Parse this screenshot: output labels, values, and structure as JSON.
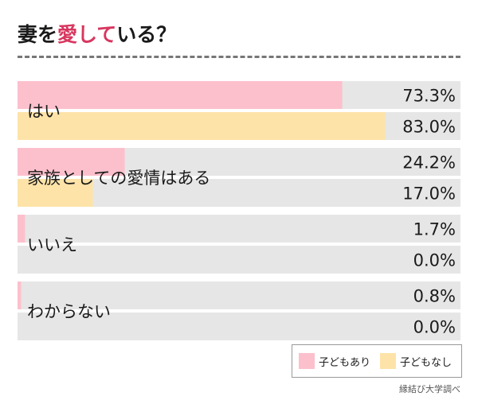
{
  "title": {
    "before": "妻を",
    "highlight": "愛して",
    "after": "いる？"
  },
  "colors": {
    "with_children": "#fcc0cc",
    "without_children": "#fde3a8",
    "track": "#e6e6e6",
    "accent": "#d8365f"
  },
  "legend": {
    "with_children": "子どもあり",
    "without_children": "子どもなし"
  },
  "source": "縁結び大学調べ",
  "chart_data": {
    "type": "bar",
    "orientation": "horizontal",
    "categories": [
      "はい",
      "家族としての愛情はある",
      "いいえ",
      "わからない"
    ],
    "series": [
      {
        "name": "子どもあり",
        "values": [
          73.3,
          24.2,
          1.7,
          0.8
        ],
        "labels": [
          "73.3%",
          "24.2%",
          "1.7%",
          "0.8%"
        ]
      },
      {
        "name": "子どもなし",
        "values": [
          83.0,
          17.0,
          0.0,
          0.0
        ],
        "labels": [
          "83.0%",
          "17.0%",
          "0.0%",
          "0.0%"
        ]
      }
    ],
    "xlim": [
      0,
      100
    ],
    "unit": "%",
    "legend_position": "bottom-right"
  }
}
